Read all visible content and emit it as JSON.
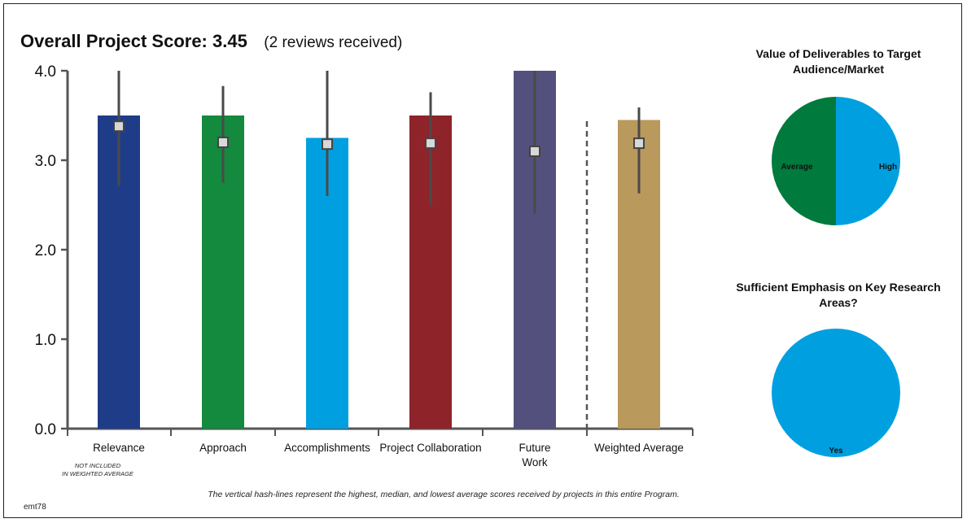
{
  "header": {
    "title": "Overall Project Score: 3.45",
    "reviews": "(2 reviews received)"
  },
  "footnote": "The vertical hash-lines represent the highest, median, and lowest average scores received by projects in this entire Program.",
  "code": "emt78",
  "chart_data": [
    {
      "type": "bar",
      "categories": [
        "Relevance",
        "Approach",
        "Accomplishments",
        "Project Collaboration",
        "Future Work",
        "Weighted Average"
      ],
      "category_lines": [
        [
          "Relevance"
        ],
        [
          "Approach"
        ],
        [
          "Accomplishments"
        ],
        [
          "Project Collaboration"
        ],
        [
          "Future",
          "Work"
        ],
        [
          "Weighted Average"
        ]
      ],
      "category_notes": [
        "NOT INCLUDED",
        "IN WEIGHTED AVERAGE"
      ],
      "values": [
        3.5,
        3.5,
        3.25,
        3.5,
        4.0,
        3.45
      ],
      "colors": [
        "#1f3c88",
        "#138a3d",
        "#00a0e0",
        "#8e2429",
        "#54507e",
        "#b9995c"
      ],
      "program_high": [
        4.0,
        3.83,
        4.0,
        3.76,
        4.0,
        3.59
      ],
      "program_median": [
        3.38,
        3.2,
        3.18,
        3.19,
        3.1,
        3.19
      ],
      "program_low": [
        2.71,
        2.75,
        2.6,
        2.5,
        2.4,
        2.63
      ],
      "ylim": [
        0,
        4
      ],
      "yticks": [
        "0.0",
        "1.0",
        "2.0",
        "3.0",
        "4.0"
      ],
      "grid": false
    },
    {
      "type": "pie",
      "title": "Value of Deliverables to Target Audience/Market",
      "title_lines": [
        "Value of Deliverables to Target",
        "Audience/Market"
      ],
      "labels": [
        "High",
        "Average"
      ],
      "values": [
        50,
        50
      ],
      "colors": [
        "#00a0e0",
        "#007a3d"
      ]
    },
    {
      "type": "pie",
      "title": "Sufficient Emphasis on Key Research Areas?",
      "title_lines": [
        "Sufficient Emphasis on Key Research",
        "Areas?"
      ],
      "labels": [
        "Yes"
      ],
      "values": [
        100
      ],
      "colors": [
        "#00a0e0"
      ]
    }
  ]
}
